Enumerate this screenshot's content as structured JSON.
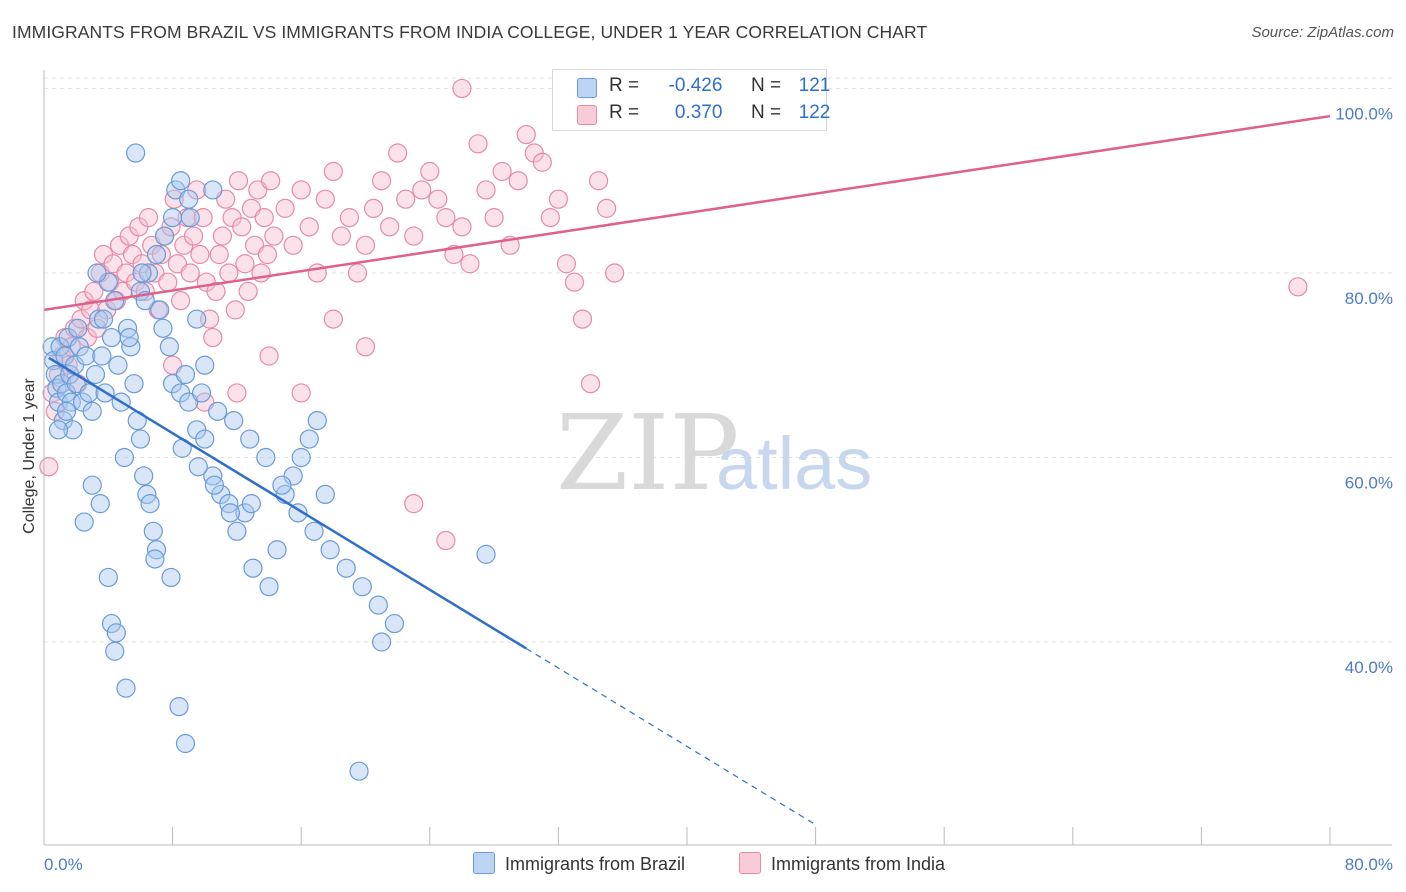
{
  "title": "IMMIGRANTS FROM BRAZIL VS IMMIGRANTS FROM INDIA COLLEGE, UNDER 1 YEAR CORRELATION CHART",
  "source": "Source: ZipAtlas.com",
  "watermark": {
    "zip": "ZIP",
    "atlas": "atlas"
  },
  "colors": {
    "brazil_fill": "#a9c8f0",
    "brazil_stroke": "#6a9bd8",
    "brazil_line": "#2f6fcc",
    "india_fill": "#f6bfd0",
    "india_stroke": "#e68aa8",
    "india_line": "#e0608a",
    "grid": "#e3e3e3",
    "axis_text": "#4a7cc7"
  },
  "legend": {
    "r_label": "R =",
    "n_label": "N =",
    "brazil": {
      "r": "-0.426",
      "n": "121"
    },
    "india": {
      "r": "0.370",
      "n": "122"
    }
  },
  "chart_data": {
    "type": "scatter",
    "xlabel": "",
    "ylabel": "College, Under 1 year",
    "xlim": [
      0,
      80
    ],
    "ylim": [
      18,
      102
    ],
    "x_tick_labels": [
      "0.0%",
      "80.0%"
    ],
    "y_ticks": [
      40,
      60,
      80,
      100
    ],
    "y_tick_labels": [
      "40.0%",
      "60.0%",
      "80.0%",
      "100.0%"
    ],
    "grid": true,
    "legend_position": "top-center",
    "series": [
      {
        "name": "Immigrants from Brazil",
        "r": -0.426,
        "n": 121,
        "trend": {
          "x0": 0.3,
          "y0": 70.8,
          "x1": 30,
          "y1": 39.3,
          "dash_x1": 48,
          "dash_y1": 20.2
        },
        "points": [
          [
            0.5,
            72
          ],
          [
            0.6,
            70.5
          ],
          [
            0.7,
            69
          ],
          [
            0.8,
            67.5
          ],
          [
            0.9,
            66
          ],
          [
            1,
            72
          ],
          [
            1.1,
            68
          ],
          [
            1.2,
            64
          ],
          [
            1.3,
            71
          ],
          [
            1.4,
            67
          ],
          [
            1.5,
            73
          ],
          [
            1.6,
            69
          ],
          [
            1.7,
            66
          ],
          [
            1.8,
            63
          ],
          [
            1.9,
            70
          ],
          [
            2,
            68
          ],
          [
            2.2,
            72
          ],
          [
            2.4,
            66
          ],
          [
            2.6,
            71
          ],
          [
            2.8,
            67
          ],
          [
            3,
            65
          ],
          [
            3.2,
            69
          ],
          [
            3.4,
            75
          ],
          [
            3.6,
            71
          ],
          [
            3.8,
            67
          ],
          [
            4,
            79
          ],
          [
            4.2,
            73
          ],
          [
            4.4,
            77
          ],
          [
            4.6,
            70
          ],
          [
            4.8,
            66
          ],
          [
            5,
            60
          ],
          [
            5.2,
            74
          ],
          [
            5.4,
            72
          ],
          [
            5.6,
            68
          ],
          [
            5.8,
            64
          ],
          [
            6,
            62
          ],
          [
            6.2,
            58
          ],
          [
            6.4,
            56
          ],
          [
            6.6,
            55
          ],
          [
            6.8,
            52
          ],
          [
            7,
            50
          ],
          [
            3,
            57
          ],
          [
            3.5,
            55
          ],
          [
            2.5,
            53
          ],
          [
            4,
            47
          ],
          [
            4.2,
            42
          ],
          [
            4.5,
            41
          ],
          [
            4.4,
            39
          ],
          [
            5.1,
            35
          ],
          [
            5.3,
            73
          ],
          [
            6,
            78
          ],
          [
            6.5,
            80
          ],
          [
            7,
            82
          ],
          [
            7.5,
            84
          ],
          [
            8,
            86
          ],
          [
            8.2,
            89
          ],
          [
            8.5,
            90
          ],
          [
            9,
            88
          ],
          [
            9.5,
            75
          ],
          [
            10,
            70
          ],
          [
            8,
            68
          ],
          [
            8.5,
            67
          ],
          [
            9,
            66
          ],
          [
            9.5,
            63
          ],
          [
            10,
            62
          ],
          [
            10.5,
            58
          ],
          [
            11,
            56
          ],
          [
            11.5,
            55
          ],
          [
            12,
            52
          ],
          [
            12.5,
            54
          ],
          [
            13,
            48
          ],
          [
            14,
            46
          ],
          [
            14.5,
            50
          ],
          [
            15,
            56
          ],
          [
            15.5,
            58
          ],
          [
            16,
            60
          ],
          [
            16.5,
            62
          ],
          [
            17,
            64
          ],
          [
            17.5,
            56
          ],
          [
            7.8,
            72
          ],
          [
            8.8,
            69
          ],
          [
            9.8,
            67
          ],
          [
            10.8,
            65
          ],
          [
            11.8,
            64
          ],
          [
            12.8,
            62
          ],
          [
            13.8,
            60
          ],
          [
            14.8,
            57
          ],
          [
            15.8,
            54
          ],
          [
            16.8,
            52
          ],
          [
            17.8,
            50
          ],
          [
            18.8,
            48
          ],
          [
            19.8,
            46
          ],
          [
            20.8,
            44
          ],
          [
            21.8,
            42
          ],
          [
            6.1,
            80
          ],
          [
            6.3,
            77
          ],
          [
            7.2,
            76
          ],
          [
            7.4,
            74
          ],
          [
            8.6,
            61
          ],
          [
            9.6,
            59
          ],
          [
            10.6,
            57
          ],
          [
            11.6,
            54
          ],
          [
            6.9,
            49
          ],
          [
            7.9,
            47
          ],
          [
            8.4,
            33
          ],
          [
            8.8,
            29
          ],
          [
            19.6,
            26
          ],
          [
            21,
            40
          ],
          [
            27.5,
            49.5
          ],
          [
            3.3,
            80
          ],
          [
            3.7,
            75
          ],
          [
            2.1,
            74
          ],
          [
            1.4,
            65
          ],
          [
            0.9,
            63
          ],
          [
            5.7,
            93
          ],
          [
            10.5,
            89
          ],
          [
            9.1,
            86
          ],
          [
            12.9,
            55
          ]
        ]
      },
      {
        "name": "Immigrants from India",
        "r": 0.37,
        "n": 122,
        "trend": {
          "x0": 0,
          "y0": 76,
          "x1": 80,
          "y1": 97
        },
        "points": [
          [
            0.5,
            67
          ],
          [
            0.7,
            65
          ],
          [
            0.9,
            69
          ],
          [
            1.1,
            71
          ],
          [
            1.3,
            73
          ],
          [
            1.5,
            70
          ],
          [
            1.7,
            72
          ],
          [
            1.9,
            74
          ],
          [
            2.1,
            68
          ],
          [
            2.3,
            75
          ],
          [
            2.5,
            77
          ],
          [
            2.7,
            73
          ],
          [
            2.9,
            76
          ],
          [
            3.1,
            78
          ],
          [
            3.3,
            74
          ],
          [
            3.5,
            80
          ],
          [
            3.7,
            82
          ],
          [
            3.9,
            76
          ],
          [
            4.1,
            79
          ],
          [
            4.3,
            81
          ],
          [
            4.5,
            77
          ],
          [
            4.7,
            83
          ],
          [
            4.9,
            78
          ],
          [
            5.1,
            80
          ],
          [
            5.3,
            84
          ],
          [
            5.5,
            82
          ],
          [
            5.7,
            79
          ],
          [
            5.9,
            85
          ],
          [
            6.1,
            81
          ],
          [
            6.3,
            78
          ],
          [
            6.5,
            86
          ],
          [
            6.7,
            83
          ],
          [
            6.9,
            80
          ],
          [
            7.1,
            76
          ],
          [
            7.3,
            82
          ],
          [
            7.5,
            84
          ],
          [
            7.7,
            79
          ],
          [
            7.9,
            85
          ],
          [
            8.1,
            88
          ],
          [
            8.3,
            81
          ],
          [
            8.5,
            77
          ],
          [
            8.7,
            83
          ],
          [
            8.9,
            86
          ],
          [
            9.1,
            80
          ],
          [
            9.3,
            84
          ],
          [
            9.5,
            89
          ],
          [
            9.7,
            82
          ],
          [
            9.9,
            86
          ],
          [
            10.1,
            79
          ],
          [
            10.3,
            75
          ],
          [
            10.5,
            73
          ],
          [
            10.7,
            78
          ],
          [
            10.9,
            82
          ],
          [
            11.1,
            84
          ],
          [
            11.3,
            88
          ],
          [
            11.5,
            80
          ],
          [
            11.7,
            86
          ],
          [
            11.9,
            76
          ],
          [
            12.1,
            90
          ],
          [
            12.3,
            85
          ],
          [
            12.5,
            81
          ],
          [
            12.7,
            78
          ],
          [
            12.9,
            87
          ],
          [
            13.1,
            83
          ],
          [
            13.3,
            89
          ],
          [
            13.5,
            80
          ],
          [
            13.7,
            86
          ],
          [
            13.9,
            82
          ],
          [
            14.1,
            90
          ],
          [
            14.3,
            84
          ],
          [
            15,
            87
          ],
          [
            15.5,
            83
          ],
          [
            16,
            89
          ],
          [
            16.5,
            85
          ],
          [
            17,
            80
          ],
          [
            17.5,
            88
          ],
          [
            18,
            91
          ],
          [
            18.5,
            84
          ],
          [
            19,
            86
          ],
          [
            19.5,
            80
          ],
          [
            20,
            83
          ],
          [
            20.5,
            87
          ],
          [
            21,
            90
          ],
          [
            21.5,
            85
          ],
          [
            22,
            93
          ],
          [
            22.5,
            88
          ],
          [
            23,
            84
          ],
          [
            23.5,
            89
          ],
          [
            24,
            91
          ],
          [
            24.5,
            88
          ],
          [
            25,
            86
          ],
          [
            25.5,
            82
          ],
          [
            26,
            85
          ],
          [
            26.5,
            81
          ],
          [
            27,
            94
          ],
          [
            27.5,
            89
          ],
          [
            28,
            86
          ],
          [
            28.5,
            91
          ],
          [
            29,
            83
          ],
          [
            29.5,
            90
          ],
          [
            30,
            95
          ],
          [
            30.5,
            93
          ],
          [
            31,
            92
          ],
          [
            31.5,
            86
          ],
          [
            32,
            88
          ],
          [
            32.5,
            81
          ],
          [
            33,
            79
          ],
          [
            33.5,
            75
          ],
          [
            34,
            68
          ],
          [
            34.5,
            90
          ],
          [
            35,
            87
          ],
          [
            35.5,
            80
          ],
          [
            8,
            70
          ],
          [
            10,
            66
          ],
          [
            12,
            67
          ],
          [
            14,
            71
          ],
          [
            16,
            67
          ],
          [
            18,
            75
          ],
          [
            20,
            72
          ],
          [
            23,
            55
          ],
          [
            25,
            51
          ],
          [
            26,
            100
          ],
          [
            78,
            78.5
          ],
          [
            0.3,
            59
          ]
        ]
      }
    ]
  },
  "bottom_legend": {
    "brazil": "Immigrants from Brazil",
    "india": "Immigrants from India"
  }
}
